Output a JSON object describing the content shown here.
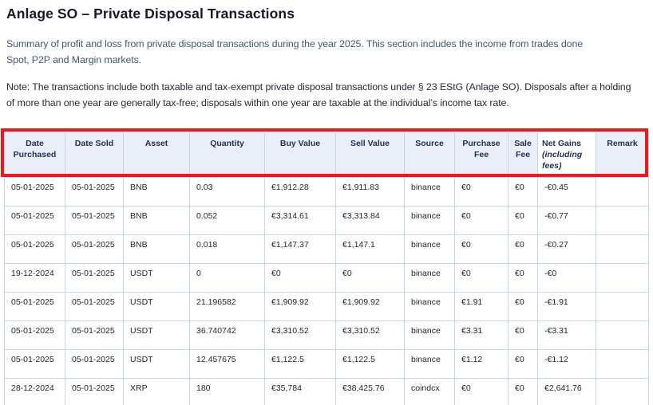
{
  "page": {
    "title": "Anlage SO – Private Disposal Transactions",
    "summary_lines": [
      "Summary of profit and loss from private disposal transactions during the year 2025. This section includes the income from trades done",
      "Spot, P2P and Margin markets."
    ],
    "note_lines": [
      "Note: The transactions include both taxable and tax-exempt private disposal transactions under § 23 EStG (Anlage SO). Disposals after a holding",
      "of more than one year are generally tax-free; disposals within one year are taxable at the individual’s income tax rate."
    ]
  },
  "annotation": {
    "color": "#e0201d",
    "purpose": "highlight-table-header-row"
  },
  "table": {
    "columns": [
      {
        "label": "Date Purchased"
      },
      {
        "label": "Date Sold"
      },
      {
        "label": "Asset"
      },
      {
        "label": "Quantity"
      },
      {
        "label": "Buy Value"
      },
      {
        "label": "Sell Value"
      },
      {
        "label": "Source"
      },
      {
        "label": "Purchase Fee"
      },
      {
        "label": "Sale Fee"
      },
      {
        "label": "Net Gains",
        "note": "(including fees)"
      },
      {
        "label": "Remark"
      }
    ],
    "rows": [
      [
        "05-01-2025",
        "05-01-2025",
        "BNB",
        "0.03",
        "€1,912.28",
        "€1,911.83",
        "binance",
        "€0",
        "€0",
        "-€0.45",
        ""
      ],
      [
        "05-01-2025",
        "05-01-2025",
        "BNB",
        "0.052",
        "€3,314.61",
        "€3,313.84",
        "binance",
        "€0",
        "€0",
        "-€0.77",
        ""
      ],
      [
        "05-01-2025",
        "05-01-2025",
        "BNB",
        "0.018",
        "€1,147.37",
        "€1,147.1",
        "binance",
        "€0",
        "€0",
        "-€0.27",
        ""
      ],
      [
        "19-12-2024",
        "05-01-2025",
        "USDT",
        "0",
        "€0",
        "€0",
        "binance",
        "€0",
        "€0",
        "-€0",
        ""
      ],
      [
        "05-01-2025",
        "05-01-2025",
        "USDT",
        "21.196582",
        "€1,909.92",
        "€1,909.92",
        "binance",
        "€1.91",
        "€0",
        "-€1.91",
        ""
      ],
      [
        "05-01-2025",
        "05-01-2025",
        "USDT",
        "36.740742",
        "€3,310.52",
        "€3,310.52",
        "binance",
        "€3.31",
        "€0",
        "-€3.31",
        ""
      ],
      [
        "05-01-2025",
        "05-01-2025",
        "USDT",
        "12.457675",
        "€1,122.5",
        "€1,122.5",
        "binance",
        "€1.12",
        "€0",
        "-€1.12",
        ""
      ],
      [
        "28-12-2024",
        "05-01-2025",
        "XRP",
        "180",
        "€35,784",
        "€38,425.76",
        "coindcx",
        "€0",
        "€0",
        "€2,641.76",
        ""
      ]
    ]
  }
}
